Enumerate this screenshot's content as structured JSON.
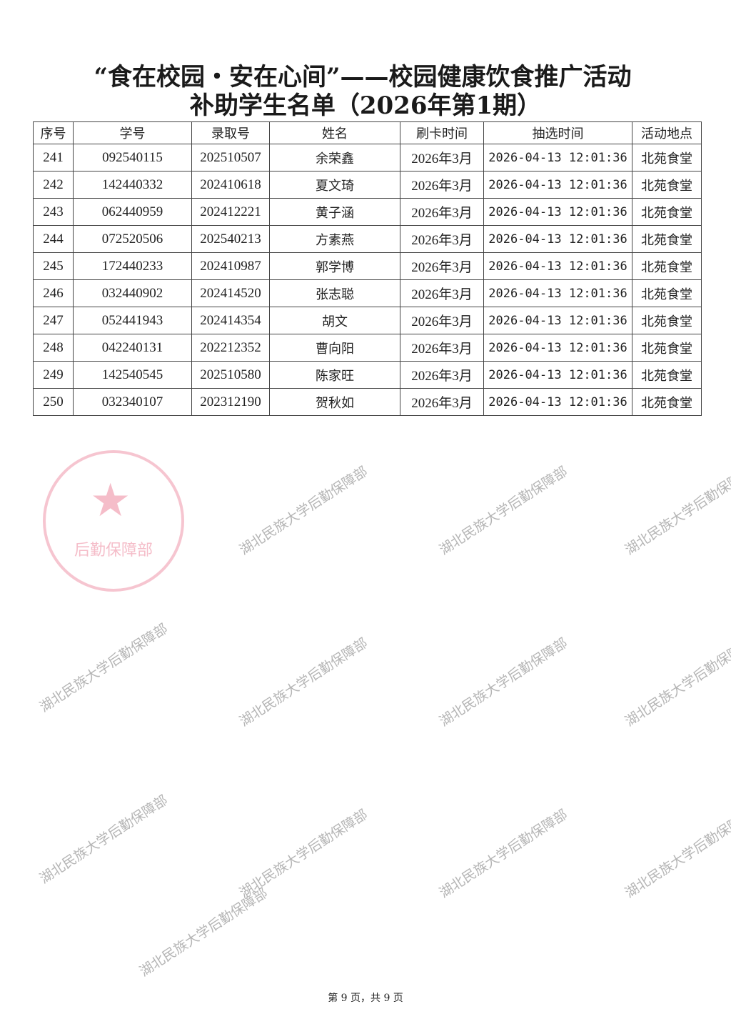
{
  "title_line1": "“食在校园・安在心间”——校园健康饮食推广活动",
  "title_line2": "补助学生名单（2026年第1期）",
  "table": {
    "headers": [
      "序号",
      "学号",
      "录取号",
      "姓名",
      "刷卡时间",
      "抽选时间",
      "活动地点"
    ],
    "rows": [
      [
        "241",
        "092540115",
        "202510507",
        "余荣鑫",
        "2026年3月",
        "2026-04-13 12:01:36",
        "北苑食堂"
      ],
      [
        "242",
        "142440332",
        "202410618",
        "夏文琦",
        "2026年3月",
        "2026-04-13 12:01:36",
        "北苑食堂"
      ],
      [
        "243",
        "062440959",
        "202412221",
        "黄子涵",
        "2026年3月",
        "2026-04-13 12:01:36",
        "北苑食堂"
      ],
      [
        "244",
        "072520506",
        "202540213",
        "方素燕",
        "2026年3月",
        "2026-04-13 12:01:36",
        "北苑食堂"
      ],
      [
        "245",
        "172440233",
        "202410987",
        "郭学博",
        "2026年3月",
        "2026-04-13 12:01:36",
        "北苑食堂"
      ],
      [
        "246",
        "032440902",
        "202414520",
        "张志聪",
        "2026年3月",
        "2026-04-13 12:01:36",
        "北苑食堂"
      ],
      [
        "247",
        "052441943",
        "202414354",
        "胡文",
        "2026年3月",
        "2026-04-13 12:01:36",
        "北苑食堂"
      ],
      [
        "248",
        "042240131",
        "202212352",
        "曹向阳",
        "2026年3月",
        "2026-04-13 12:01:36",
        "北苑食堂"
      ],
      [
        "249",
        "142540545",
        "202510580",
        "陈家旺",
        "2026年3月",
        "2026-04-13 12:01:36",
        "北苑食堂"
      ],
      [
        "250",
        "032340107",
        "202312190",
        "贺秋如",
        "2026年3月",
        "2026-04-13 12:01:36",
        "北苑食堂"
      ]
    ]
  },
  "footer": "第 9 页，共 9 页",
  "watermark": "湖北民族大学后勤保障部",
  "stamp": {
    "text": "湖北民族大学后勤保障部",
    "color": "#e65a78"
  }
}
